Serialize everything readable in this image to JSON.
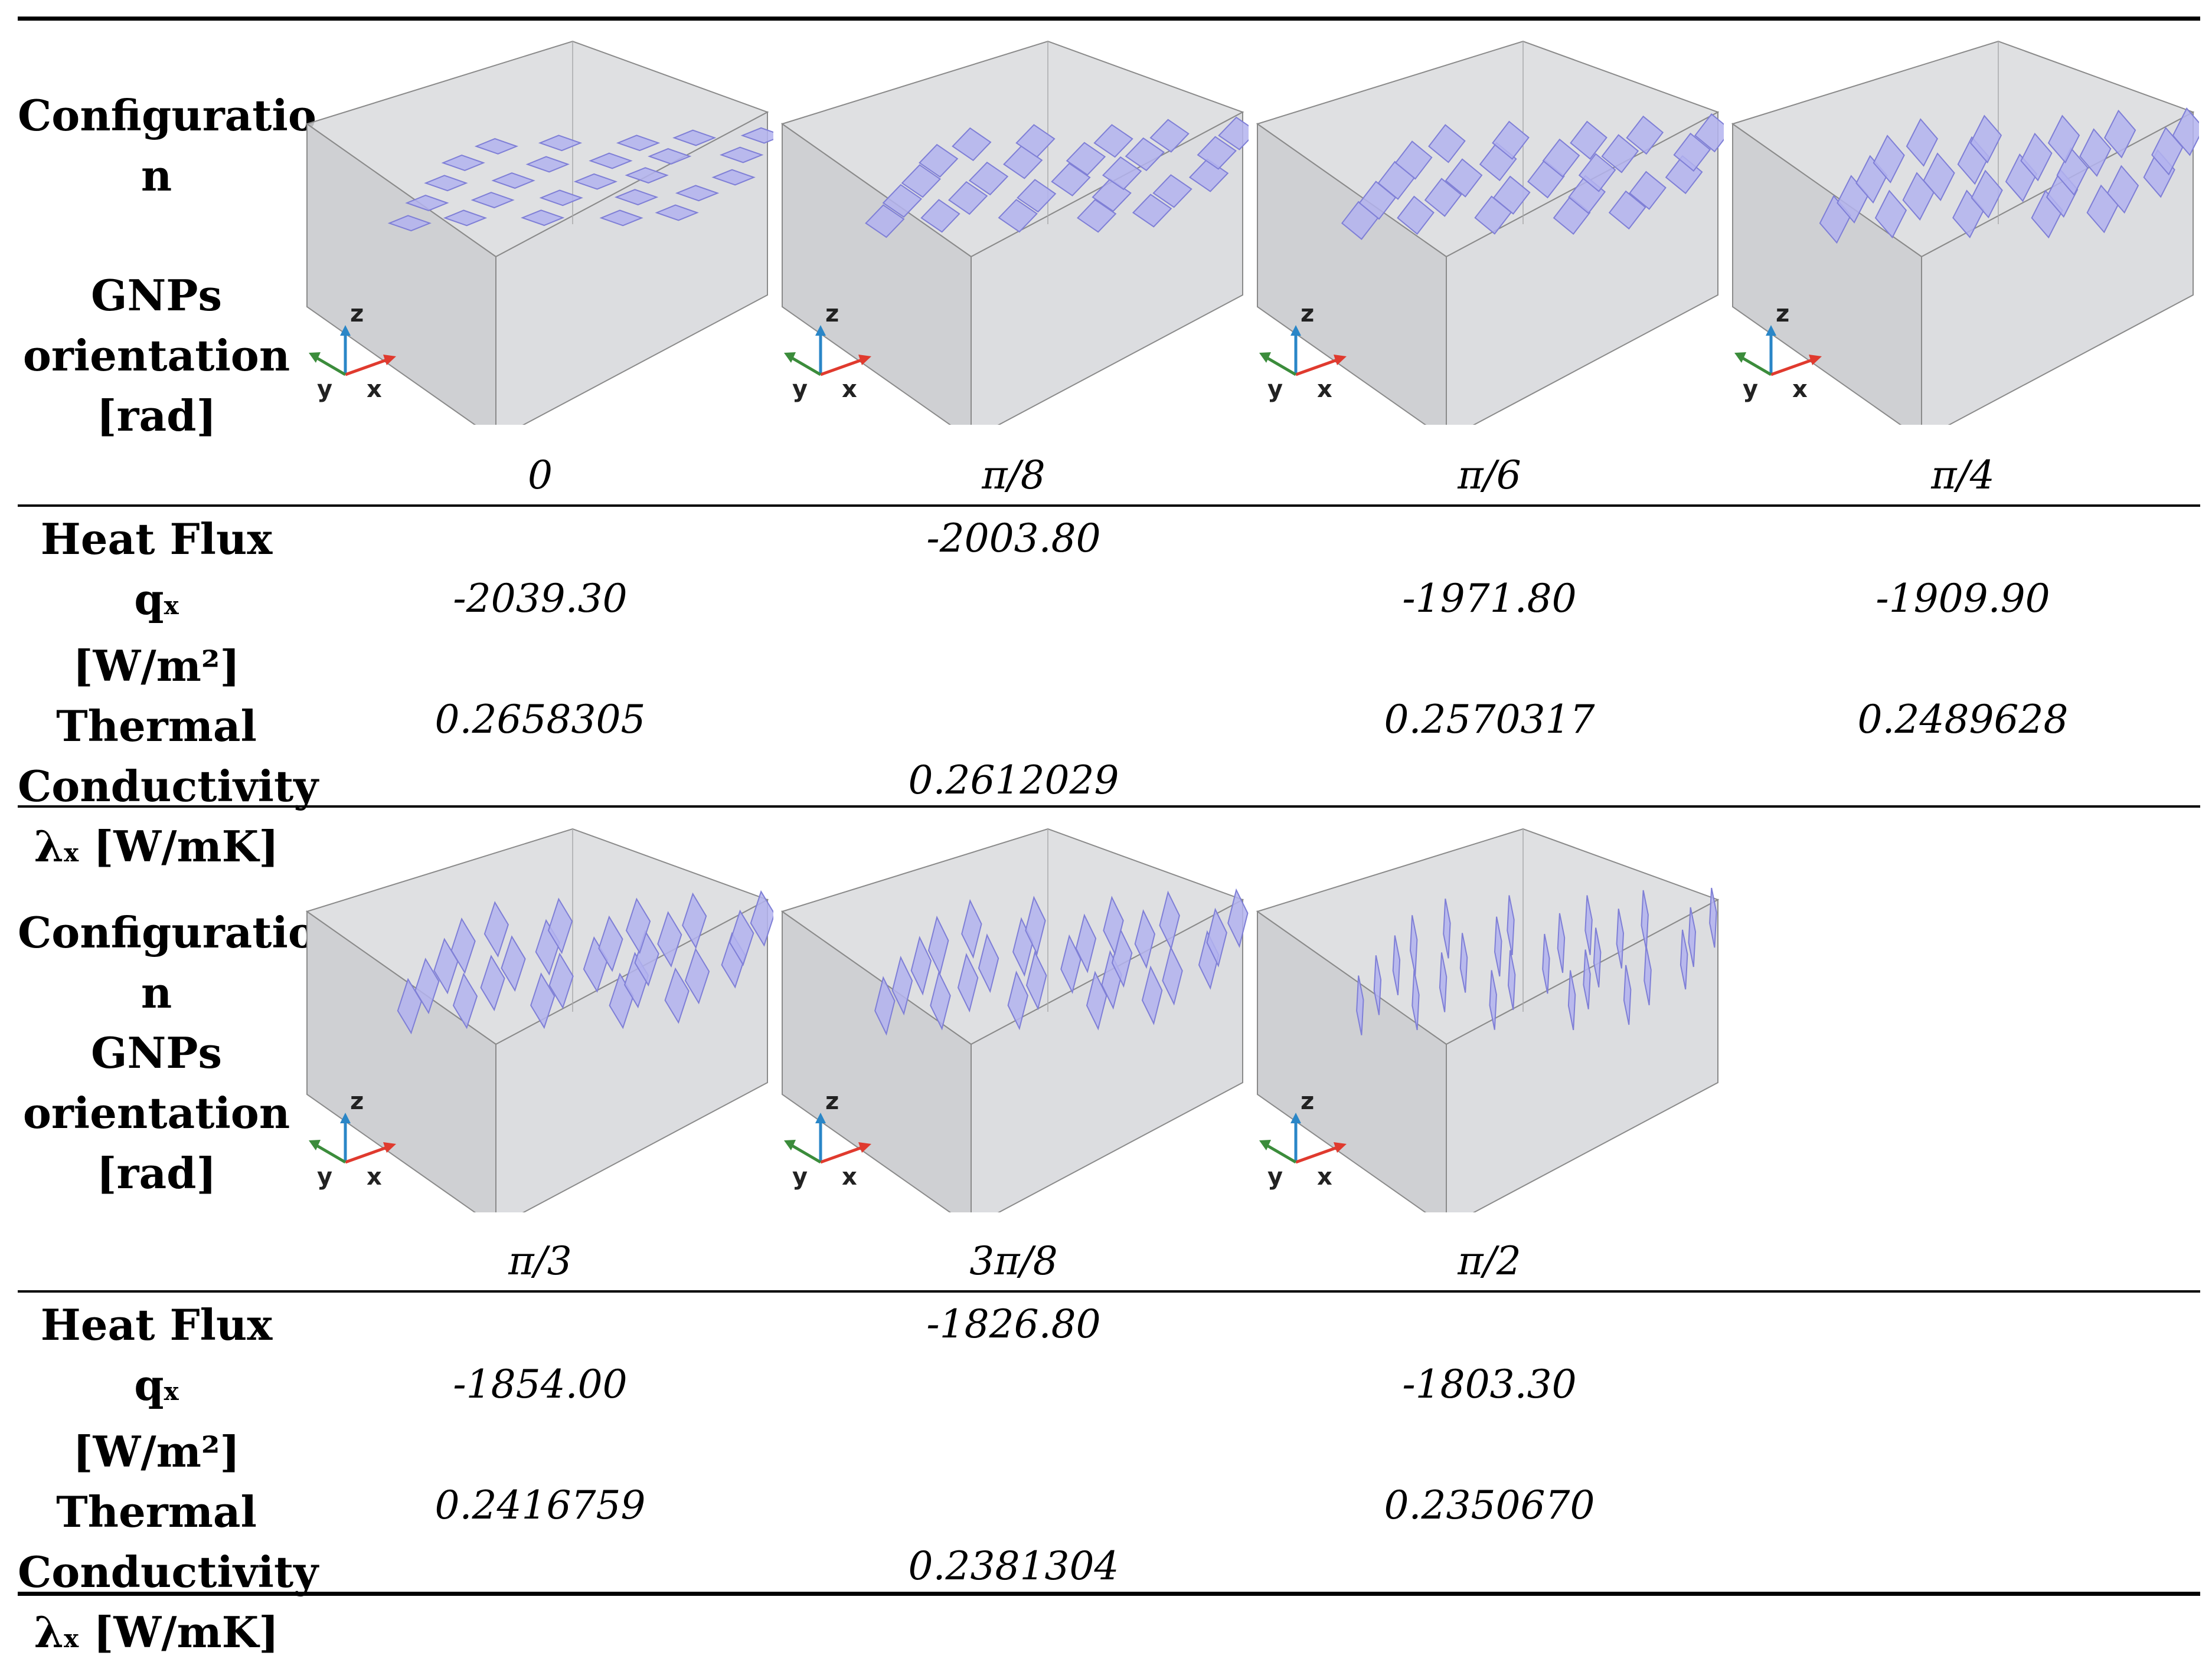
{
  "labels": {
    "config_line1": "Configuratio",
    "config_line2": "n",
    "gnps_line1": "GNPs",
    "gnps_line2": "orientation",
    "gnps_line3": "[rad]",
    "heat_flux_main": "Heat Flux q",
    "heat_flux_sub": "x",
    "heat_flux_unit": "[W/m²]",
    "thermal_line1": "Thermal",
    "thermal_line2": "Conductivity",
    "lambda_main": "λ",
    "lambda_sub": "x",
    "lambda_unit": " [W/mK]"
  },
  "axis_labels": {
    "x": "x",
    "y": "y",
    "z": "z"
  },
  "colors": {
    "platelet_fill": "#b3b3ee",
    "platelet_stroke": "#7f7fd6",
    "box_fill": "#d6d7da",
    "box_stroke": "#8a8a8a",
    "axis_x": "#e03a2e",
    "axis_y": "#3b8c3b",
    "axis_z": "#2a86c7"
  },
  "row1": {
    "orientations": [
      "0",
      "π/8",
      "π/6",
      "π/4"
    ],
    "heat_flux": [
      "-2039.30",
      "-2003.80",
      "-1971.80",
      "-1909.90"
    ],
    "conductivity": [
      "0.2658305",
      "0.2612029",
      "0.2570317",
      "0.2489628"
    ]
  },
  "row2": {
    "orientations": [
      "π/3",
      "3π/8",
      "π/2"
    ],
    "heat_flux": [
      "-1854.00",
      "-1826.80",
      "-1803.30"
    ],
    "conductivity": [
      "0.2416759",
      "0.2381304",
      "0.2350670"
    ]
  }
}
